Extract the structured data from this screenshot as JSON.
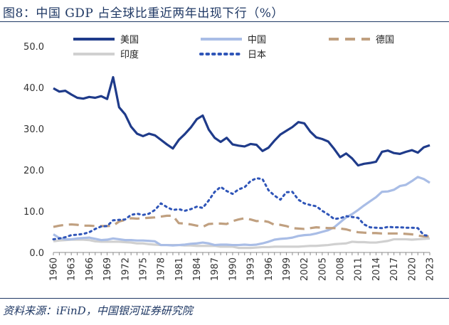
{
  "figure": {
    "title": "图8：中国 GDP 占全球比重近两年出现下行（%）",
    "source": "资料来源：iFinD，中国银河证券研究院"
  },
  "chart_data": {
    "type": "line",
    "title": "中国 GDP 占全球比重近两年出现下行（%）",
    "xlabel": "",
    "ylabel": "%",
    "ylim": [
      0,
      50
    ],
    "yticks": [
      "0.0",
      "10.0",
      "20.0",
      "30.0",
      "40.0",
      "50.0"
    ],
    "ytick_values": [
      0,
      10,
      20,
      30,
      40,
      50
    ],
    "xticks": [
      1960,
      1963,
      1966,
      1969,
      1972,
      1975,
      1978,
      1981,
      1984,
      1987,
      1990,
      1993,
      1996,
      1999,
      2002,
      2005,
      2008,
      2011,
      2014,
      2017,
      2020,
      2023
    ],
    "x": [
      1960,
      1961,
      1962,
      1963,
      1964,
      1965,
      1966,
      1967,
      1968,
      1969,
      1970,
      1971,
      1972,
      1973,
      1974,
      1975,
      1976,
      1977,
      1978,
      1979,
      1980,
      1981,
      1982,
      1983,
      1984,
      1985,
      1986,
      1987,
      1988,
      1989,
      1990,
      1991,
      1992,
      1993,
      1994,
      1995,
      1996,
      1997,
      1998,
      1999,
      2000,
      2001,
      2002,
      2003,
      2004,
      2005,
      2006,
      2007,
      2008,
      2009,
      2010,
      2011,
      2012,
      2013,
      2014,
      2015,
      2016,
      2017,
      2018,
      2019,
      2020,
      2021,
      2022,
      2023
    ],
    "series": [
      {
        "name": "美国",
        "color": "#1f3b8a",
        "dash": "solid",
        "values": [
          39.8,
          39.0,
          39.2,
          38.3,
          37.5,
          37.3,
          37.7,
          37.5,
          37.9,
          37.2,
          42.5,
          35.2,
          33.5,
          30.5,
          28.8,
          28.2,
          28.8,
          28.4,
          27.3,
          26.2,
          25.2,
          27.3,
          28.7,
          30.3,
          32.3,
          33.2,
          29.8,
          27.8,
          26.8,
          27.8,
          26.2,
          25.9,
          25.7,
          26.3,
          26.1,
          24.6,
          25.4,
          27.1,
          28.6,
          29.5,
          30.4,
          31.6,
          31.3,
          29.3,
          27.9,
          27.5,
          26.9,
          25.1,
          23.1,
          24.0,
          22.8,
          21.1,
          21.5,
          21.7,
          22.0,
          24.4,
          24.7,
          24.1,
          23.9,
          24.4,
          24.8,
          24.2,
          25.5,
          26.0
        ]
      },
      {
        "name": "中国",
        "color": "#a9bde6",
        "dash": "solid",
        "values": [
          4.4,
          3.5,
          3.2,
          3.2,
          3.4,
          3.5,
          3.6,
          3.3,
          3.0,
          3.1,
          3.4,
          3.2,
          3.0,
          3.0,
          2.9,
          2.9,
          2.8,
          2.7,
          1.8,
          1.8,
          1.7,
          1.8,
          1.9,
          2.1,
          2.2,
          2.4,
          2.2,
          1.8,
          1.9,
          1.9,
          1.8,
          1.8,
          1.9,
          1.8,
          1.9,
          2.2,
          2.6,
          3.1,
          3.3,
          3.4,
          3.6,
          4.0,
          4.2,
          4.3,
          4.6,
          5.0,
          5.4,
          6.1,
          7.3,
          8.5,
          9.3,
          10.3,
          11.4,
          12.4,
          13.4,
          14.7,
          14.8,
          15.2,
          16.1,
          16.4,
          17.3,
          18.3,
          17.8,
          16.9
        ]
      },
      {
        "name": "德国",
        "color": "#c0a080",
        "dash": "dashed",
        "values": [
          6.2,
          6.5,
          6.7,
          6.8,
          6.7,
          6.5,
          6.5,
          6.4,
          6.4,
          6.4,
          6.5,
          7.5,
          7.9,
          8.3,
          8.2,
          8.3,
          8.4,
          8.5,
          8.7,
          8.9,
          8.9,
          7.1,
          7.0,
          6.8,
          6.5,
          6.2,
          6.9,
          7.0,
          7.0,
          6.9,
          7.6,
          8.0,
          8.3,
          8.0,
          7.6,
          7.7,
          7.4,
          6.7,
          6.7,
          6.4,
          5.9,
          5.8,
          5.7,
          5.9,
          6.1,
          6.0,
          5.9,
          5.9,
          5.8,
          5.6,
          5.2,
          4.9,
          4.8,
          4.7,
          4.7,
          4.6,
          4.6,
          4.6,
          4.6,
          4.5,
          4.4,
          4.1,
          3.9,
          3.9
        ]
      },
      {
        "name": "印度",
        "color": "#d0d0d0",
        "dash": "solid",
        "values": [
          2.7,
          2.9,
          3.0,
          3.1,
          3.1,
          3.1,
          3.0,
          2.7,
          2.6,
          2.6,
          2.6,
          2.6,
          2.5,
          2.4,
          2.2,
          2.2,
          2.0,
          1.9,
          1.8,
          1.8,
          1.8,
          1.8,
          1.7,
          1.7,
          1.6,
          1.6,
          1.6,
          1.6,
          1.4,
          1.4,
          1.4,
          1.1,
          1.1,
          1.1,
          1.2,
          1.3,
          1.3,
          1.4,
          1.4,
          1.4,
          1.4,
          1.4,
          1.5,
          1.6,
          1.6,
          1.7,
          1.8,
          2.0,
          2.1,
          2.2,
          2.6,
          2.5,
          2.5,
          2.4,
          2.4,
          2.6,
          2.8,
          3.2,
          3.2,
          3.2,
          3.1,
          3.2,
          3.3,
          3.4
        ]
      },
      {
        "name": "日本",
        "color": "#2f55b8",
        "dash": "dotted",
        "values": [
          3.2,
          3.4,
          3.7,
          4.2,
          4.3,
          4.5,
          4.9,
          5.7,
          6.3,
          6.4,
          7.8,
          7.9,
          8.0,
          9.1,
          9.4,
          9.1,
          9.4,
          10.3,
          11.9,
          11.0,
          10.3,
          10.5,
          10.1,
          10.5,
          11.1,
          10.8,
          12.6,
          14.7,
          15.9,
          14.9,
          14.2,
          15.3,
          15.8,
          17.3,
          18.0,
          17.8,
          15.1,
          13.8,
          12.8,
          14.6,
          14.7,
          12.8,
          11.9,
          11.5,
          11.2,
          10.1,
          9.2,
          8.1,
          8.3,
          8.8,
          8.6,
          8.4,
          6.8,
          6.1,
          6.0,
          5.9,
          6.2,
          6.1,
          6.1,
          6.0,
          6.0,
          5.9,
          4.2,
          4.0
        ]
      }
    ],
    "legend": [
      {
        "name": "美国",
        "color": "#1f3b8a",
        "dash": "solid"
      },
      {
        "name": "中国",
        "color": "#a9bde6",
        "dash": "solid"
      },
      {
        "name": "德国",
        "color": "#c0a080",
        "dash": "dashed"
      },
      {
        "name": "印度",
        "color": "#d0d0d0",
        "dash": "solid"
      },
      {
        "name": "日本",
        "color": "#2f55b8",
        "dash": "dotted"
      }
    ],
    "grid": false,
    "legend_position": "top"
  }
}
